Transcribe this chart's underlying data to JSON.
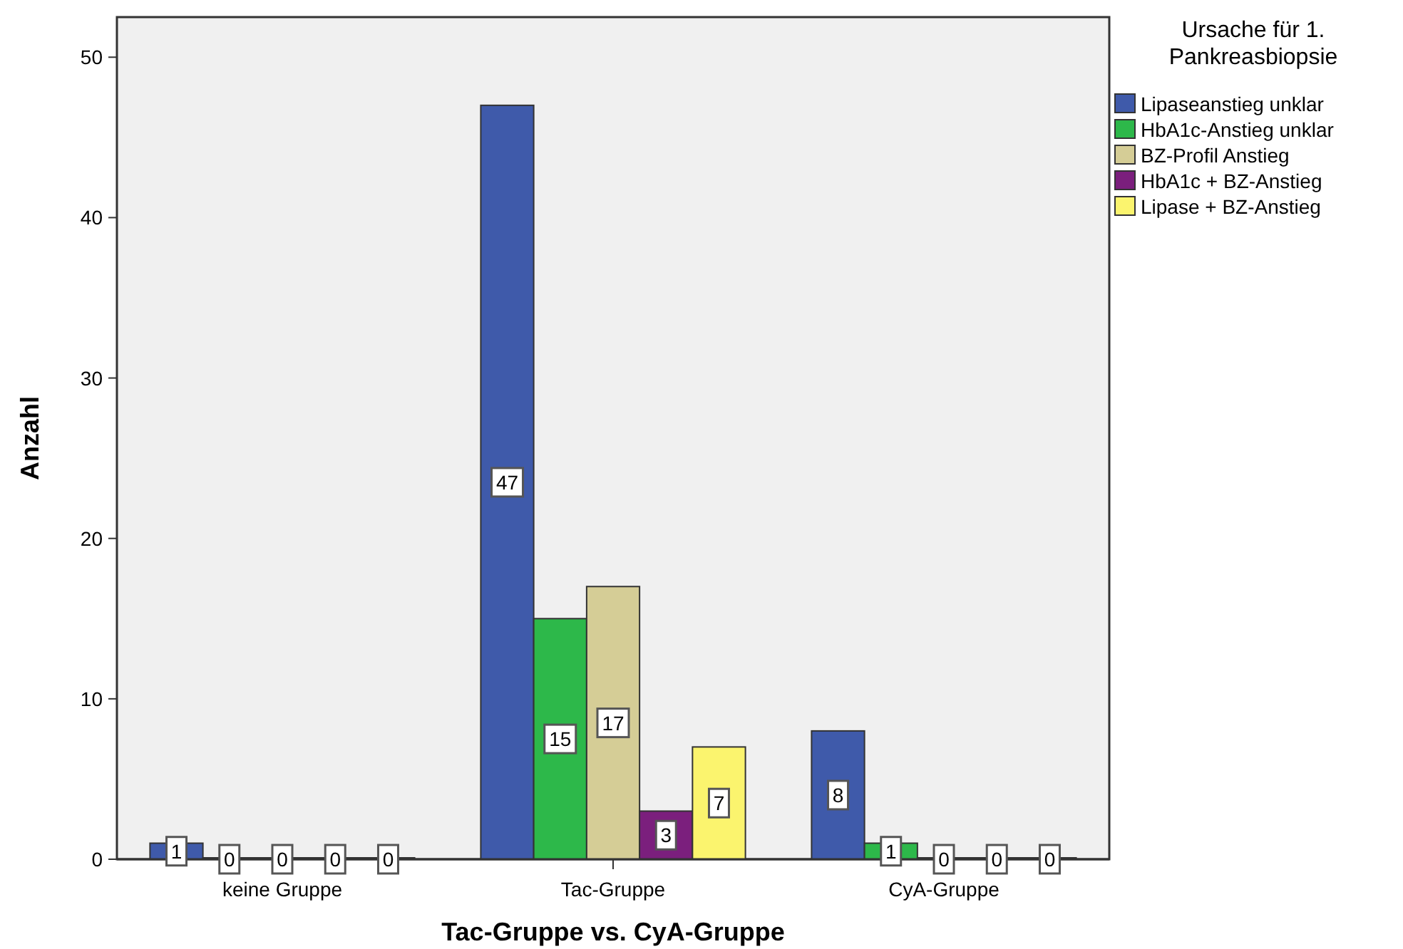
{
  "chart_data": {
    "type": "bar",
    "xlabel": "Tac-Gruppe vs. CyA-Gruppe",
    "ylabel": "Anzahl",
    "legend_title": "Ursache für 1. Pankreasbiopsie",
    "categories": [
      "keine Gruppe",
      "Tac-Gruppe",
      "CyA-Gruppe"
    ],
    "series": [
      {
        "name": "Lipaseanstieg unklar",
        "color": "#3f5aaa",
        "values": [
          1,
          47,
          8
        ]
      },
      {
        "name": "HbA1c-Anstieg unklar",
        "color": "#2db84a",
        "values": [
          0,
          15,
          1
        ]
      },
      {
        "name": "BZ-Profil Anstieg",
        "color": "#d5cd96",
        "values": [
          0,
          17,
          0
        ]
      },
      {
        "name": "HbA1c + BZ-Anstieg",
        "color": "#7b1f7d",
        "values": [
          0,
          3,
          0
        ]
      },
      {
        "name": "Lipase + BZ-Anstieg",
        "color": "#fbf46e",
        "values": [
          0,
          7,
          0
        ]
      }
    ],
    "ylim": [
      0,
      52.5
    ],
    "yticks": [
      0,
      10,
      20,
      30,
      40,
      50
    ],
    "grid": false,
    "legend": "right",
    "data_labels": true
  }
}
